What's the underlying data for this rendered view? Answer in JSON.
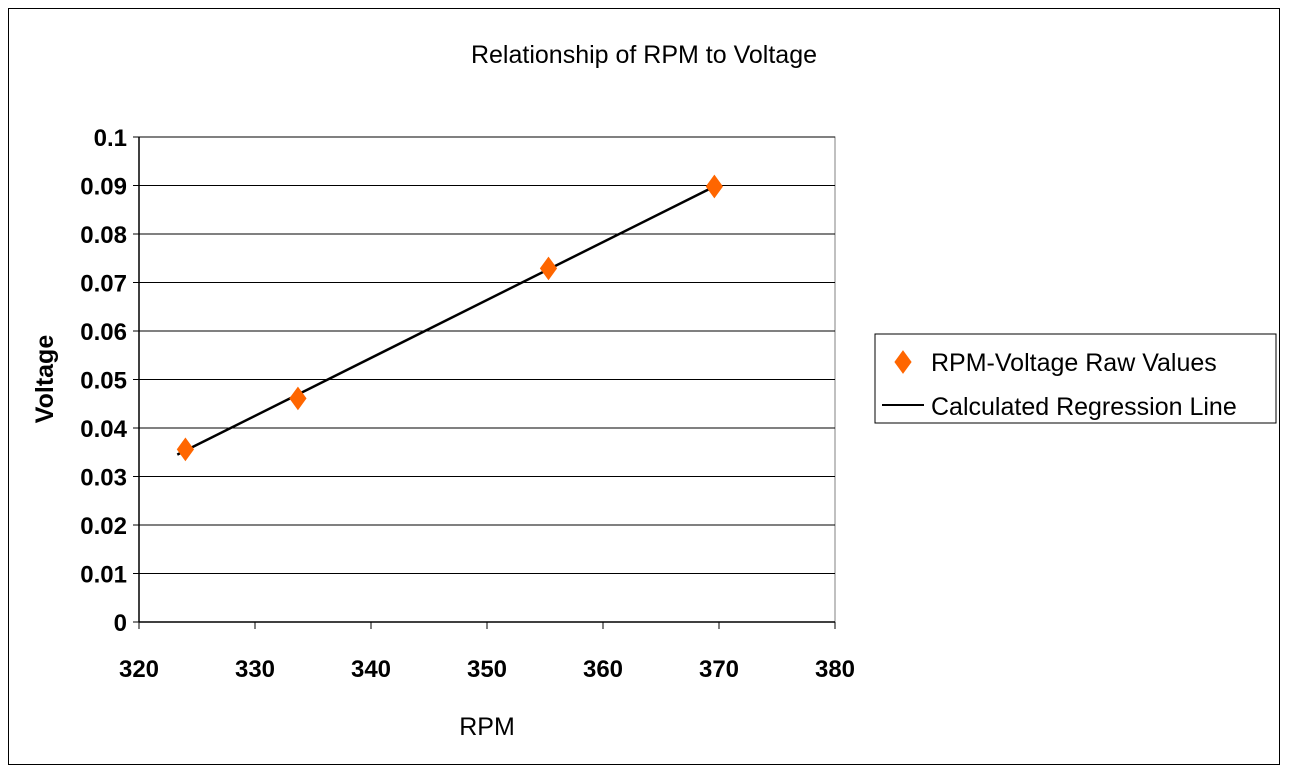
{
  "chart_data": {
    "type": "scatter",
    "title": "Relationship of RPM to Voltage",
    "xlabel": "RPM",
    "ylabel": "Voltage",
    "xlim": [
      320,
      380
    ],
    "ylim": [
      0,
      0.1
    ],
    "x_ticks": [
      "320",
      "330",
      "340",
      "350",
      "360",
      "370",
      "380"
    ],
    "y_ticks": [
      "0",
      "0.01",
      "0.02",
      "0.03",
      "0.04",
      "0.05",
      "0.06",
      "0.07",
      "0.08",
      "0.09",
      "0.1"
    ],
    "grid": "horizontal",
    "legend_position": "right",
    "series": [
      {
        "name": "RPM-Voltage Raw Values",
        "kind": "marker",
        "marker": "diamond",
        "color": "#FF6600",
        "x": [
          324,
          333.7,
          355.3,
          369.6
        ],
        "y": [
          0.0356,
          0.0461,
          0.0729,
          0.0898
        ]
      },
      {
        "name": "Calculated Regression Line",
        "kind": "line",
        "color": "#000000",
        "x": [
          323.3,
          369.6
        ],
        "y": [
          0.0345,
          0.0898
        ]
      }
    ]
  }
}
